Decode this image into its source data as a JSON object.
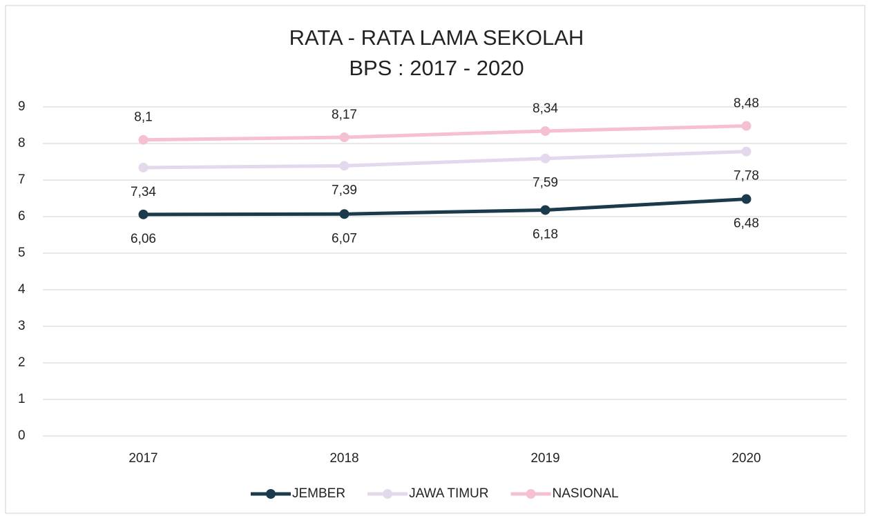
{
  "chart_data": {
    "type": "line",
    "title": "RATA - RATA LAMA SEKOLAH",
    "subtitle": "BPS : 2017 - 2020",
    "categories": [
      "2017",
      "2018",
      "2019",
      "2020"
    ],
    "series": [
      {
        "name": "JEMBER",
        "color": "#1b3a4b",
        "values": [
          6.06,
          6.07,
          6.18,
          6.48
        ],
        "value_labels": [
          "6,06",
          "6,07",
          "6,18",
          "6,48"
        ]
      },
      {
        "name": "JAWA TIMUR",
        "color": "#e4d8ec",
        "values": [
          7.34,
          7.39,
          7.59,
          7.78
        ],
        "value_labels": [
          "7,34",
          "7,39",
          "7,59",
          "7,78"
        ]
      },
      {
        "name": "NASIONAL",
        "color": "#f5c0d0",
        "values": [
          8.1,
          8.17,
          8.34,
          8.48
        ],
        "value_labels": [
          "8,1",
          "8,17",
          "8,34",
          "8,48"
        ]
      }
    ],
    "ylim": [
      0,
      9
    ],
    "yticks": [
      0,
      1,
      2,
      3,
      4,
      5,
      6,
      7,
      8,
      9
    ],
    "grid": true,
    "legend": "bottom"
  }
}
